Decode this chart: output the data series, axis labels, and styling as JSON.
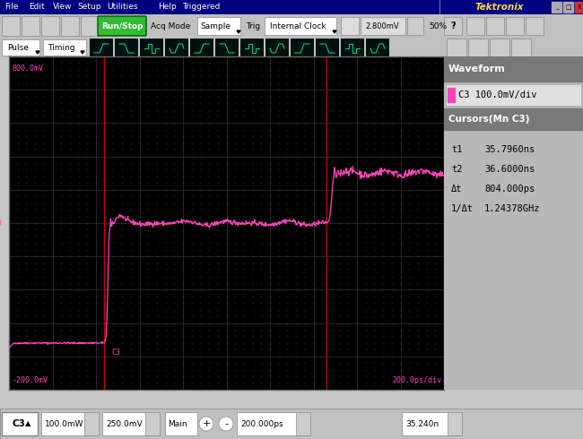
{
  "bg_color": "#000000",
  "outer_bg": "#c8c8c8",
  "grid_color": "#333333",
  "waveform_color": "#ff44bb",
  "cursor_color": "#cc0000",
  "title_bar_bg": "#000080",
  "title_bar_text": "#ffffff",
  "tektronix_text": "#ffdd44",
  "toolbar_bg": "#c0c0c0",
  "panel_bg": "#b8b8b8",
  "panel_header_bg": "#787878",
  "panel_header_text": "#ffffff",
  "panel_c3_bg": "#e8e8e8",
  "y_top_label": "800.0mV",
  "y_bottom_label": "-200.0mV",
  "x_right_label": "200.0ps/div",
  "waveform_panel_label": "Waveform",
  "c3_label": "C3 100.0mV/div",
  "cursors_label": "Cursors(Mn C3)",
  "t1_label": "t1",
  "t1_val": "35.7960ns",
  "t2_label": "t2",
  "t2_val": "36.6000ns",
  "dt_label": "Δt",
  "dt_val": "804.000ps",
  "inv_dt_label": "1/Δt",
  "inv_dt_val": "1.24378GHz",
  "run_stop_text": "Run/Stop",
  "run_stop_bg": "#33bb33",
  "menu_items": [
    "File",
    "Edit",
    "View",
    "Setup",
    "Utilities",
    "Help",
    "Triggered"
  ],
  "tb2_items": [
    "Acq Mode",
    "Sample",
    "Trig",
    "Internal Clock",
    "2.800mV",
    "50%"
  ],
  "status_c3": "C3",
  "status_vol1": "100.0mW",
  "status_vol2": "250.0mV",
  "status_main": "Main",
  "status_time1": "200.000ps",
  "status_time2": "35.240n"
}
